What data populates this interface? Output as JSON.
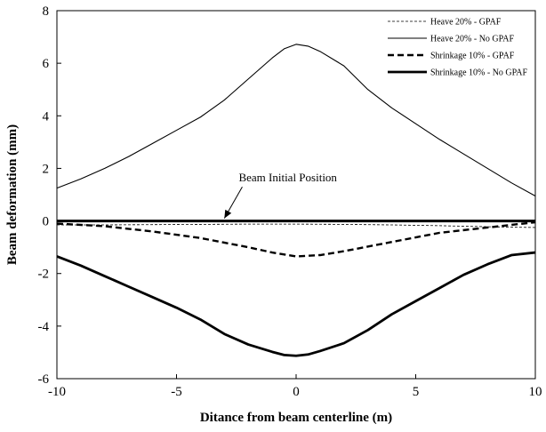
{
  "chart_data": {
    "type": "line",
    "xlabel": "Ditance from beam centerline (m)",
    "ylabel": "Beam deformation (mm)",
    "xlim": [
      -10,
      10
    ],
    "ylim": [
      -6,
      8
    ],
    "xticks": [
      -10,
      -5,
      0,
      5,
      10
    ],
    "yticks": [
      -6,
      -4,
      -2,
      0,
      2,
      4,
      6,
      8
    ],
    "grid": false,
    "legend_position": "top-right",
    "series": [
      {
        "name": "Heave 20% - GPAF",
        "style": "dashed-thin",
        "x": [
          -10,
          -8,
          -6,
          -4,
          -2,
          0,
          2,
          4,
          6,
          8,
          10
        ],
        "y": [
          -0.15,
          -0.15,
          -0.14,
          -0.13,
          -0.12,
          -0.12,
          -0.13,
          -0.15,
          -0.18,
          -0.22,
          -0.25
        ]
      },
      {
        "name": "Heave 20% - No GPAF",
        "style": "solid-thin",
        "x": [
          -10,
          -9,
          -8,
          -7,
          -6,
          -5,
          -4,
          -3,
          -2,
          -1,
          -0.5,
          0,
          0.5,
          1,
          2,
          3,
          4,
          5,
          6,
          7,
          8,
          9,
          10
        ],
        "y": [
          1.25,
          1.6,
          2.0,
          2.45,
          2.95,
          3.45,
          3.95,
          4.6,
          5.4,
          6.2,
          6.55,
          6.72,
          6.65,
          6.45,
          5.9,
          5.0,
          4.3,
          3.7,
          3.1,
          2.55,
          2.0,
          1.45,
          0.95
        ]
      },
      {
        "name": "Shrinkage 10% - GPAF",
        "style": "dashed-thick",
        "x": [
          -10,
          -8,
          -6,
          -4,
          -2,
          -1,
          0,
          1,
          2,
          4,
          6,
          8,
          10
        ],
        "y": [
          -0.1,
          -0.2,
          -0.4,
          -0.65,
          -1.0,
          -1.2,
          -1.35,
          -1.3,
          -1.15,
          -0.8,
          -0.45,
          -0.25,
          -0.05
        ]
      },
      {
        "name": "Shrinkage 10% - No GPAF",
        "style": "solid-thick",
        "x": [
          -10,
          -9,
          -8,
          -7,
          -6,
          -5,
          -4,
          -3,
          -2,
          -1,
          -0.5,
          0,
          0.5,
          1,
          2,
          3,
          4,
          5,
          6,
          7,
          8,
          9,
          10
        ],
        "y": [
          -1.35,
          -1.7,
          -2.1,
          -2.5,
          -2.9,
          -3.3,
          -3.75,
          -4.3,
          -4.7,
          -4.98,
          -5.1,
          -5.13,
          -5.08,
          -4.95,
          -4.65,
          -4.15,
          -3.55,
          -3.05,
          -2.55,
          -2.05,
          -1.65,
          -1.3,
          -1.2
        ]
      },
      {
        "name": "",
        "style": "baseline",
        "x": [
          -10,
          10
        ],
        "y": [
          0,
          0
        ]
      }
    ],
    "annotations": [
      {
        "text": "Beam Initial Position",
        "x": -2.4,
        "y": 1.5,
        "arrow_to": [
          -3.0,
          0.1
        ]
      }
    ]
  }
}
